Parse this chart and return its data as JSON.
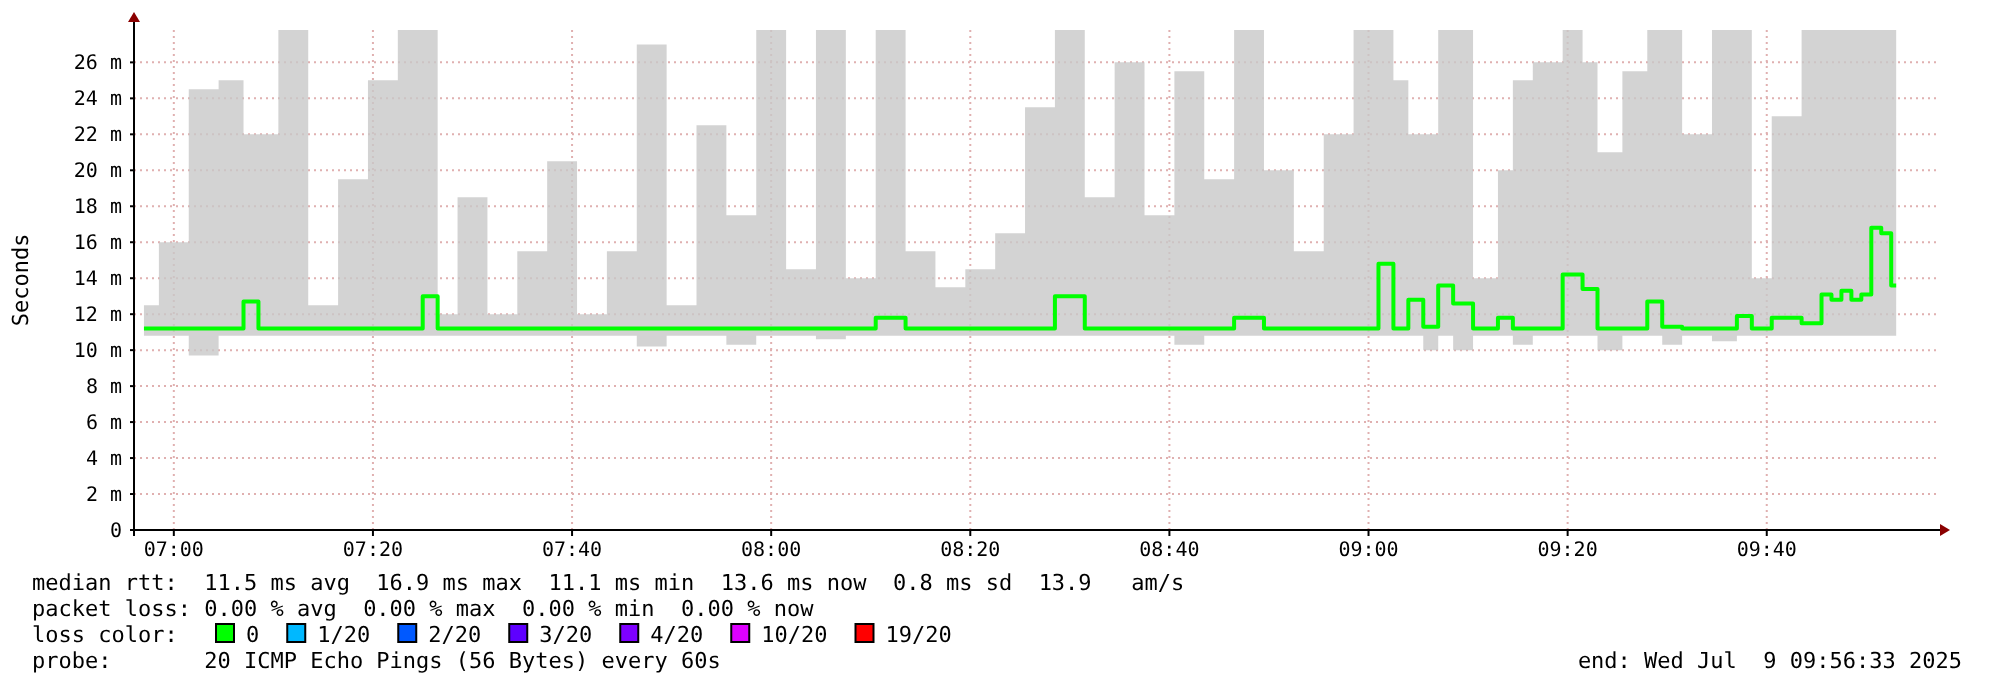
{
  "chart_data": {
    "type": "step",
    "ylabel": "Seconds",
    "xlim": [
      "2025-07-09T06:56",
      "2025-07-09T09:57"
    ],
    "xticks": [
      {
        "value": "2025-07-09T07:00",
        "label": "07:00"
      },
      {
        "value": "2025-07-09T07:20",
        "label": "07:20"
      },
      {
        "value": "2025-07-09T07:40",
        "label": "07:40"
      },
      {
        "value": "2025-07-09T08:00",
        "label": "08:00"
      },
      {
        "value": "2025-07-09T08:20",
        "label": "08:20"
      },
      {
        "value": "2025-07-09T08:40",
        "label": "08:40"
      },
      {
        "value": "2025-07-09T09:00",
        "label": "09:00"
      },
      {
        "value": "2025-07-09T09:20",
        "label": "09:20"
      },
      {
        "value": "2025-07-09T09:40",
        "label": "09:40"
      }
    ],
    "ylim": [
      0,
      27.8
    ],
    "yticks": [
      0,
      {
        "value": 2,
        "label": "2 m"
      },
      {
        "value": 4,
        "label": "4 m"
      },
      {
        "value": 6,
        "label": "6 m"
      },
      {
        "value": 8,
        "label": "8 m"
      },
      {
        "value": 10,
        "label": "10 m"
      },
      {
        "value": 12,
        "label": "12 m"
      },
      {
        "value": 14,
        "label": "14 m"
      },
      {
        "value": 16,
        "label": "16 m"
      },
      {
        "value": 18,
        "label": "18 m"
      },
      {
        "value": 20,
        "label": "20 m"
      },
      {
        "value": 22,
        "label": "22 m"
      },
      {
        "value": 24,
        "label": "24 m"
      },
      {
        "value": 26,
        "label": "26 m"
      }
    ],
    "grid": true,
    "legend": "bottom",
    "legend_title": "loss color:",
    "x": [
      "2025-07-09T06:57",
      "2025-07-09T07:00",
      "2025-07-09T07:03",
      "2025-07-09T07:06",
      "2025-07-09T07:08",
      "2025-07-09T07:09",
      "2025-07-09T07:12",
      "2025-07-09T07:15",
      "2025-07-09T07:18",
      "2025-07-09T07:21",
      "2025-07-09T07:24",
      "2025-07-09T07:26",
      "2025-07-09T07:27",
      "2025-07-09T07:30",
      "2025-07-09T07:33",
      "2025-07-09T07:36",
      "2025-07-09T07:39",
      "2025-07-09T07:42",
      "2025-07-09T07:45",
      "2025-07-09T07:48",
      "2025-07-09T07:51",
      "2025-07-09T07:54",
      "2025-07-09T07:57",
      "2025-07-09T08:00",
      "2025-07-09T08:03",
      "2025-07-09T08:06",
      "2025-07-09T08:09",
      "2025-07-09T08:12",
      "2025-07-09T08:15",
      "2025-07-09T08:18",
      "2025-07-09T08:21",
      "2025-07-09T08:24",
      "2025-07-09T08:27",
      "2025-07-09T08:30",
      "2025-07-09T08:33",
      "2025-07-09T08:36",
      "2025-07-09T08:39",
      "2025-07-09T08:42",
      "2025-07-09T08:45",
      "2025-07-09T08:48",
      "2025-07-09T08:51",
      "2025-07-09T08:54",
      "2025-07-09T08:57",
      "2025-07-09T09:00",
      "2025-07-09T09:02",
      "2025-07-09T09:03",
      "2025-07-09T09:05",
      "2025-07-09T09:06",
      "2025-07-09T09:08",
      "2025-07-09T09:09",
      "2025-07-09T09:12",
      "2025-07-09T09:14",
      "2025-07-09T09:15",
      "2025-07-09T09:18",
      "2025-07-09T09:21",
      "2025-07-09T09:22",
      "2025-07-09T09:24",
      "2025-07-09T09:27",
      "2025-07-09T09:29",
      "2025-07-09T09:30",
      "2025-07-09T09:33",
      "2025-07-09T09:36",
      "2025-07-09T09:38",
      "2025-07-09T09:39",
      "2025-07-09T09:42",
      "2025-07-09T09:45",
      "2025-07-09T09:46",
      "2025-07-09T09:47",
      "2025-07-09T09:48",
      "2025-07-09T09:49",
      "2025-07-09T09:50",
      "2025-07-09T09:51",
      "2025-07-09T09:52",
      "2025-07-09T09:53"
    ],
    "series": [
      {
        "name": "0",
        "color": "#00ff00",
        "values": [
          11.2,
          11.2,
          11.2,
          11.2,
          12.7,
          11.2,
          11.2,
          11.2,
          11.2,
          11.2,
          11.2,
          13.0,
          11.2,
          11.2,
          11.2,
          11.2,
          11.2,
          11.2,
          11.2,
          11.2,
          11.2,
          11.2,
          11.2,
          11.2,
          11.2,
          11.2,
          11.2,
          11.8,
          11.2,
          11.2,
          11.2,
          11.2,
          11.2,
          13.0,
          11.2,
          11.2,
          11.2,
          11.2,
          11.2,
          11.8,
          11.2,
          11.2,
          11.2,
          11.2,
          14.8,
          11.2,
          12.8,
          11.3,
          13.6,
          12.6,
          11.2,
          11.8,
          11.2,
          11.2,
          14.2,
          13.4,
          11.2,
          11.2,
          12.7,
          11.3,
          11.2,
          11.2,
          11.9,
          11.2,
          11.8,
          11.5,
          13.1,
          12.8,
          13.3,
          12.8,
          13.1,
          16.8,
          16.5,
          13.6
        ],
        "lower": [
          10.8,
          10.8,
          9.7,
          10.8,
          10.8,
          10.8,
          10.8,
          10.8,
          10.8,
          10.8,
          10.8,
          10.8,
          10.8,
          10.8,
          10.8,
          10.8,
          10.8,
          10.8,
          10.8,
          10.2,
          10.8,
          10.8,
          10.3,
          10.8,
          10.8,
          10.6,
          10.8,
          10.8,
          10.8,
          10.8,
          10.8,
          10.8,
          10.8,
          10.8,
          10.8,
          10.8,
          10.8,
          10.3,
          10.8,
          10.8,
          10.8,
          10.8,
          10.8,
          10.8,
          10.8,
          10.8,
          10.8,
          10.0,
          10.8,
          10.0,
          10.8,
          10.8,
          10.3,
          10.8,
          10.8,
          10.8,
          10.0,
          10.8,
          10.8,
          10.3,
          10.8,
          10.5,
          10.8,
          10.8,
          10.8,
          10.8,
          10.8,
          10.8,
          10.8,
          10.8,
          10.8,
          10.8,
          10.8,
          10.8
        ],
        "upper": [
          12.5,
          16,
          24.5,
          25,
          22,
          22,
          27.8,
          12.5,
          19.5,
          25,
          27.8,
          27.8,
          12,
          18.5,
          12,
          15.5,
          20.5,
          12,
          15.5,
          27,
          12.5,
          22.5,
          17.5,
          27.8,
          14.5,
          27.8,
          14,
          27.8,
          15.5,
          13.5,
          14.5,
          16.5,
          23.5,
          27.8,
          18.5,
          26,
          17.5,
          25.5,
          19.5,
          27.8,
          20,
          15.5,
          22,
          27.8,
          27.8,
          25,
          22,
          22,
          27.8,
          27.8,
          14,
          20,
          25,
          26,
          27.8,
          26,
          21,
          25.5,
          27.8,
          27.8,
          22,
          27.8,
          27.8,
          14,
          23,
          27.8,
          27.8,
          27.8,
          27.8,
          27.8,
          27.8,
          27.8,
          27.8,
          27.8
        ]
      },
      {
        "name": "1/20",
        "color": "#00b8ff",
        "values": [
          null,
          null,
          null,
          null,
          null,
          null,
          null,
          null,
          null,
          null,
          null,
          null,
          null,
          null,
          null,
          null,
          null,
          null,
          null,
          null,
          null,
          null,
          null,
          null,
          null,
          null,
          null,
          null,
          null,
          null,
          null,
          null,
          null,
          null,
          null,
          null,
          null,
          null,
          null,
          null,
          null,
          null,
          null,
          null,
          null,
          null,
          null,
          null,
          null,
          null,
          null,
          null,
          null,
          null,
          null,
          null,
          null,
          null,
          null,
          null,
          null,
          null,
          null,
          null,
          null,
          null,
          null,
          null,
          null,
          null,
          null,
          null,
          null,
          null
        ]
      },
      {
        "name": "2/20",
        "color": "#0059ff",
        "values": [
          null,
          null,
          null,
          null,
          null,
          null,
          null,
          null,
          null,
          null,
          null,
          null,
          null,
          null,
          null,
          null,
          null,
          null,
          null,
          null,
          null,
          null,
          null,
          null,
          null,
          null,
          null,
          null,
          null,
          null,
          null,
          null,
          null,
          null,
          null,
          null,
          null,
          null,
          null,
          null,
          null,
          null,
          null,
          null,
          null,
          null,
          null,
          null,
          null,
          null,
          null,
          null,
          null,
          null,
          null,
          null,
          null,
          null,
          null,
          null,
          null,
          null,
          null,
          null,
          null,
          null,
          null,
          null,
          null,
          null,
          null,
          null,
          null,
          null
        ]
      },
      {
        "name": "3/20",
        "color": "#5e00ff",
        "values": [
          null,
          null,
          null,
          null,
          null,
          null,
          null,
          null,
          null,
          null,
          null,
          null,
          null,
          null,
          null,
          null,
          null,
          null,
          null,
          null,
          null,
          null,
          null,
          null,
          null,
          null,
          null,
          null,
          null,
          null,
          null,
          null,
          null,
          null,
          null,
          null,
          null,
          null,
          null,
          null,
          null,
          null,
          null,
          null,
          null,
          null,
          null,
          null,
          null,
          null,
          null,
          null,
          null,
          null,
          null,
          null,
          null,
          null,
          null,
          null,
          null,
          null,
          null,
          null,
          null,
          null,
          null,
          null,
          null,
          null,
          null,
          null,
          null,
          null
        ]
      },
      {
        "name": "4/20",
        "color": "#7e00ff",
        "values": [
          null,
          null,
          null,
          null,
          null,
          null,
          null,
          null,
          null,
          null,
          null,
          null,
          null,
          null,
          null,
          null,
          null,
          null,
          null,
          null,
          null,
          null,
          null,
          null,
          null,
          null,
          null,
          null,
          null,
          null,
          null,
          null,
          null,
          null,
          null,
          null,
          null,
          null,
          null,
          null,
          null,
          null,
          null,
          null,
          null,
          null,
          null,
          null,
          null,
          null,
          null,
          null,
          null,
          null,
          null,
          null,
          null,
          null,
          null,
          null,
          null,
          null,
          null,
          null,
          null,
          null,
          null,
          null,
          null,
          null,
          null,
          null,
          null,
          null
        ]
      },
      {
        "name": "10/20",
        "color": "#dd00ff",
        "values": [
          null,
          null,
          null,
          null,
          null,
          null,
          null,
          null,
          null,
          null,
          null,
          null,
          null,
          null,
          null,
          null,
          null,
          null,
          null,
          null,
          null,
          null,
          null,
          null,
          null,
          null,
          null,
          null,
          null,
          null,
          null,
          null,
          null,
          null,
          null,
          null,
          null,
          null,
          null,
          null,
          null,
          null,
          null,
          null,
          null,
          null,
          null,
          null,
          null,
          null,
          null,
          null,
          null,
          null,
          null,
          null,
          null,
          null,
          null,
          null,
          null,
          null,
          null,
          null,
          null,
          null,
          null,
          null,
          null,
          null,
          null,
          null,
          null,
          null
        ]
      },
      {
        "name": "19/20",
        "color": "#ff0000",
        "values": [
          null,
          null,
          null,
          null,
          null,
          null,
          null,
          null,
          null,
          null,
          null,
          null,
          null,
          null,
          null,
          null,
          null,
          null,
          null,
          null,
          null,
          null,
          null,
          null,
          null,
          null,
          null,
          null,
          null,
          null,
          null,
          null,
          null,
          null,
          null,
          null,
          null,
          null,
          null,
          null,
          null,
          null,
          null,
          null,
          null,
          null,
          null,
          null,
          null,
          null,
          null,
          null,
          null,
          null,
          null,
          null,
          null,
          null,
          null,
          null,
          null,
          null,
          null,
          null,
          null,
          null,
          null,
          null,
          null,
          null,
          null,
          null,
          null,
          null
        ]
      }
    ],
    "annotations": [
      "median rtt:  11.5 ms avg  16.9 ms max  11.1 ms min  13.6 ms now  0.8 ms sd  13.9   am/s",
      "packet loss: 0.00 % avg  0.00 % max  0.00 % min  0.00 % now",
      "probe:       20 ICMP Echo Pings (56 Bytes) every 60s",
      "end: Wed Jul  9 09:56:33 2025"
    ]
  }
}
